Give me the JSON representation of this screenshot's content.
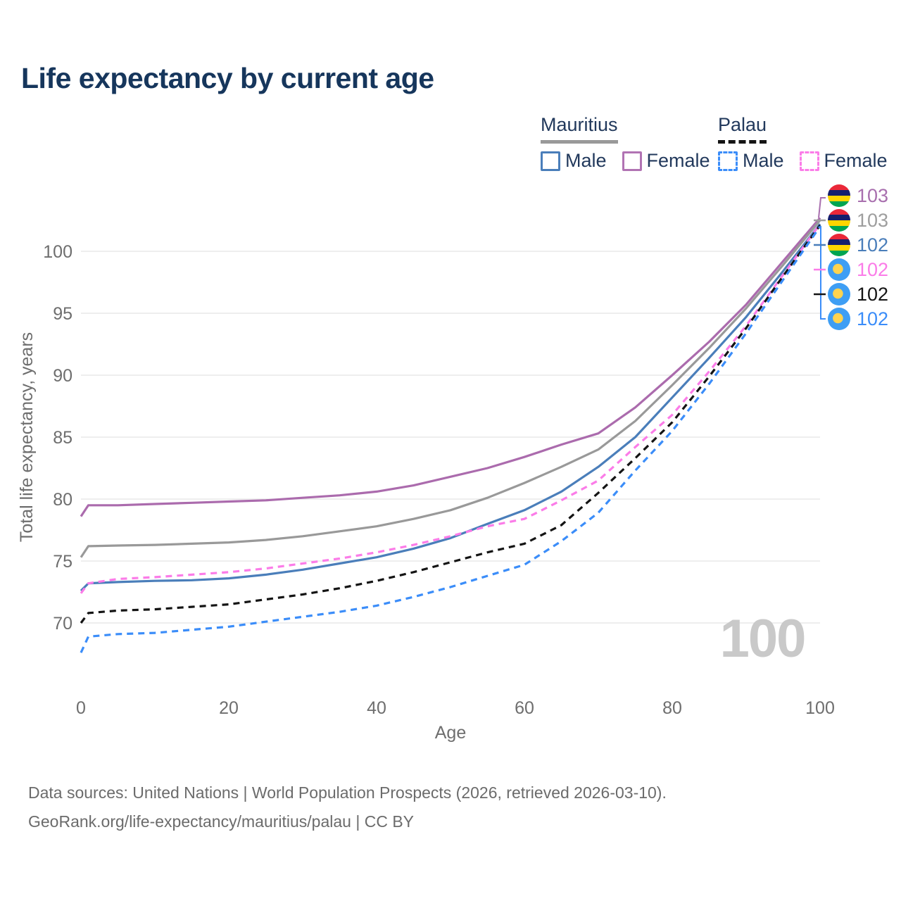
{
  "header": {
    "title": "Life expectancy by current age"
  },
  "legend": {
    "groups": [
      {
        "country": "Mauritius",
        "line_style": "solid",
        "underline_color": "#999999",
        "items": [
          {
            "label": "Male",
            "color": "#4a7eba",
            "style": "solid"
          },
          {
            "label": "Female",
            "color": "#b173b3",
            "style": "solid"
          }
        ]
      },
      {
        "country": "Palau",
        "line_style": "dashed",
        "underline_color": "#141414",
        "items": [
          {
            "label": "Male",
            "color": "#3b8df9",
            "style": "dashed"
          },
          {
            "label": "Female",
            "color": "#fb7ce8",
            "style": "dashed"
          }
        ]
      }
    ]
  },
  "chart_data": {
    "type": "line",
    "title": "Life expectancy by current age",
    "xlabel": "Age",
    "ylabel": "Total life expectancy, years",
    "xlim": [
      0,
      100
    ],
    "ylim": [
      67,
      103
    ],
    "x_ticks": [
      0,
      20,
      40,
      60,
      80,
      100
    ],
    "y_ticks": [
      70,
      75,
      80,
      85,
      90,
      95,
      100
    ],
    "grid": "horizontal-only",
    "legend_position": "top-right",
    "x": [
      0,
      1,
      5,
      10,
      15,
      20,
      25,
      30,
      35,
      40,
      45,
      50,
      55,
      60,
      65,
      70,
      75,
      80,
      85,
      90,
      95,
      100
    ],
    "series": [
      {
        "name": "Mauritius — Female",
        "country": "Mauritius",
        "sex": "Female",
        "style": "solid",
        "color": "#ab6bad",
        "end_label": 103,
        "values": [
          78.6,
          79.5,
          79.5,
          79.6,
          79.7,
          79.8,
          79.9,
          80.1,
          80.3,
          80.6,
          81.1,
          81.8,
          82.5,
          83.4,
          84.4,
          85.3,
          87.4,
          90.0,
          92.7,
          95.7,
          99.2,
          102.7
        ]
      },
      {
        "name": "Mauritius — Both sexes",
        "country": "Mauritius",
        "sex": "All",
        "style": "solid",
        "color": "#999999",
        "end_label": 103,
        "values": [
          75.3,
          76.2,
          76.25,
          76.3,
          76.4,
          76.5,
          76.7,
          77.0,
          77.4,
          77.8,
          78.4,
          79.1,
          80.1,
          81.3,
          82.6,
          84.0,
          86.3,
          89.2,
          92.2,
          95.4,
          98.9,
          102.5
        ]
      },
      {
        "name": "Mauritius — Male",
        "country": "Mauritius",
        "sex": "Male",
        "style": "solid",
        "color": "#4a7eba",
        "end_label": 102,
        "values": [
          72.6,
          73.2,
          73.3,
          73.4,
          73.45,
          73.6,
          73.9,
          74.3,
          74.8,
          75.3,
          76.0,
          76.85,
          78.0,
          79.1,
          80.6,
          82.6,
          85.0,
          88.2,
          91.4,
          94.7,
          98.4,
          102.2
        ]
      },
      {
        "name": "Palau — Female",
        "country": "Palau",
        "sex": "Female",
        "style": "dashed",
        "color": "#fb7ce8",
        "end_label": 102,
        "values": [
          72.4,
          73.2,
          73.55,
          73.7,
          73.9,
          74.1,
          74.4,
          74.8,
          75.2,
          75.7,
          76.3,
          77.0,
          77.8,
          78.4,
          79.9,
          81.5,
          84.2,
          86.8,
          90.3,
          94.0,
          98.1,
          102.2
        ]
      },
      {
        "name": "Palau — Both sexes",
        "country": "Palau",
        "sex": "All",
        "style": "dashed",
        "color": "#141414",
        "end_label": 102,
        "values": [
          70.0,
          70.8,
          71.0,
          71.1,
          71.3,
          71.5,
          71.9,
          72.3,
          72.8,
          73.4,
          74.1,
          74.9,
          75.7,
          76.4,
          77.9,
          80.5,
          83.3,
          86.2,
          89.9,
          93.8,
          98.0,
          102.1
        ]
      },
      {
        "name": "Palau — Male",
        "country": "Palau",
        "sex": "Male",
        "style": "dashed",
        "color": "#3b8df9",
        "end_label": 102,
        "values": [
          67.6,
          68.9,
          69.1,
          69.2,
          69.45,
          69.7,
          70.1,
          70.5,
          70.9,
          71.4,
          72.1,
          72.9,
          73.8,
          74.7,
          76.6,
          78.9,
          82.3,
          85.5,
          89.3,
          93.4,
          97.7,
          102.0
        ]
      }
    ]
  },
  "end_labels": [
    {
      "country": "Mauritius",
      "flag": "mauritius",
      "value": "103",
      "color": "#a86fae"
    },
    {
      "country": "Mauritius",
      "flag": "mauritius",
      "value": "103",
      "color": "#9e9e9e"
    },
    {
      "country": "Mauritius",
      "flag": "mauritius",
      "value": "102",
      "color": "#4a7eba"
    },
    {
      "country": "Palau",
      "flag": "palau",
      "value": "102",
      "color": "#fb7ce8"
    },
    {
      "country": "Palau",
      "flag": "palau",
      "value": "102",
      "color": "#141414"
    },
    {
      "country": "Palau",
      "flag": "palau",
      "value": "102",
      "color": "#3b8df9"
    }
  ],
  "watermark": "100",
  "axis_text_color": "#6e6e6e",
  "grid_color": "#e9e9e9",
  "footer": {
    "line1": "Data sources: United Nations | World Population Prospects (2026, retrieved 2026-03-10).",
    "line2": "GeoRank.org/life-expectancy/mauritius/palau | CC BY"
  }
}
